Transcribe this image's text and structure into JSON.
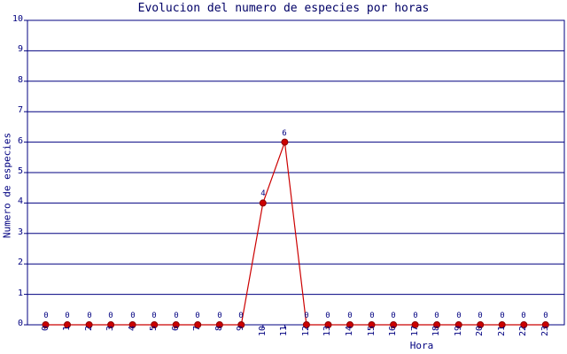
{
  "chart_data": {
    "type": "line",
    "title": "Evolucion del numero de especies por horas",
    "xlabel": "Hora",
    "ylabel": "Numero de especies",
    "x": [
      0,
      1,
      2,
      3,
      4,
      5,
      6,
      7,
      8,
      9,
      10,
      11,
      12,
      13,
      14,
      15,
      16,
      17,
      18,
      19,
      20,
      21,
      22,
      23
    ],
    "values": [
      0,
      0,
      0,
      0,
      0,
      0,
      0,
      0,
      0,
      0,
      4,
      6,
      0,
      0,
      0,
      0,
      0,
      0,
      0,
      0,
      0,
      0,
      0,
      0
    ],
    "ylim": [
      0,
      10
    ],
    "yticks": [
      0,
      1,
      2,
      3,
      4,
      5,
      6,
      7,
      8,
      9,
      10
    ],
    "grid": true,
    "point_labels": true,
    "legend_position": "none",
    "colors": {
      "background": "#ffffff",
      "grid": "#000080",
      "axis": "#000080",
      "tick_text": "#000080",
      "title_text": "#000066",
      "line": "#cc0000",
      "point_fill": "#cc0000",
      "point_border": "#8b0000"
    }
  }
}
